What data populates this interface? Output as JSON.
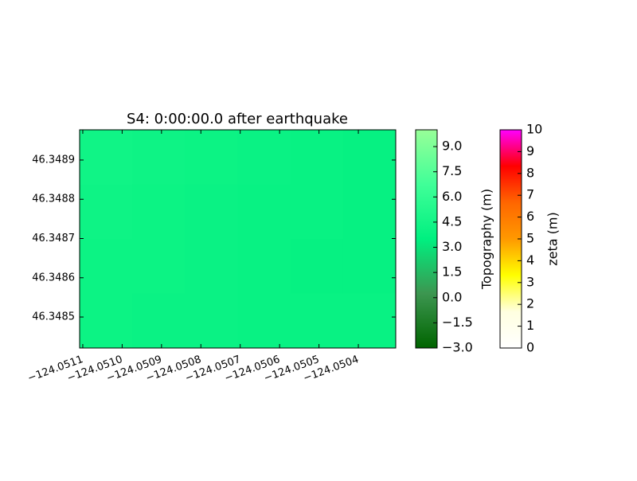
{
  "chart_data": {
    "type": "heatmap",
    "title": "S4: 0:00:00.0 after earthquake",
    "xlim": [
      -124.051108,
      -124.050305
    ],
    "ylim": [
      46.348421,
      46.348977
    ],
    "xticks": [
      {
        "value": -124.0511,
        "label": "−124.0511"
      },
      {
        "value": -124.051,
        "label": "−124.0510"
      },
      {
        "value": -124.0509,
        "label": "−124.0509"
      },
      {
        "value": -124.0508,
        "label": "−124.0508"
      },
      {
        "value": -124.0507,
        "label": "−124.0507"
      },
      {
        "value": -124.0506,
        "label": "−124.0506"
      },
      {
        "value": -124.0505,
        "label": "−124.0505"
      },
      {
        "value": -124.0504,
        "label": "−124.0504"
      }
    ],
    "yticks": [
      46.3485,
      46.3486,
      46.3487,
      46.3488,
      46.3489
    ],
    "z": [
      [
        4.3,
        4.2,
        4.1,
        4.0,
        3.9,
        3.8
      ],
      [
        4.2,
        4.1,
        4.0,
        3.9,
        3.9,
        3.8
      ],
      [
        4.1,
        4.1,
        4.0,
        3.9,
        3.8,
        3.8
      ],
      [
        4.1,
        4.0,
        4.0,
        3.9,
        3.9,
        3.9
      ]
    ],
    "colorbars": [
      {
        "label": "Topography (m)",
        "lim": [
          -3,
          10
        ],
        "colors": [
          "#006400",
          "#3c9650",
          "#00f080",
          "#40ff98",
          "#98ff98"
        ],
        "ticks": [
          {
            "value": -3,
            "label": "−3.0"
          },
          {
            "value": -1.5,
            "label": "−1.5"
          },
          {
            "value": 0,
            "label": "0.0"
          },
          1.5,
          {
            "value": 3,
            "label": "3.0"
          },
          4.5,
          {
            "value": 6,
            "label": "6.0"
          },
          7.5,
          {
            "value": 9,
            "label": "9.0"
          }
        ]
      },
      {
        "label": "zeta (m)",
        "lim": [
          0,
          10
        ],
        "colors": [
          "#ffffff",
          "#ffffe0",
          "#ffff00",
          "#ff9900",
          "#ff6600",
          "#ff0000",
          "#ff00ff"
        ],
        "ticks": [
          0,
          1,
          2,
          3,
          4,
          5,
          6,
          7,
          8,
          9,
          10
        ]
      }
    ]
  }
}
